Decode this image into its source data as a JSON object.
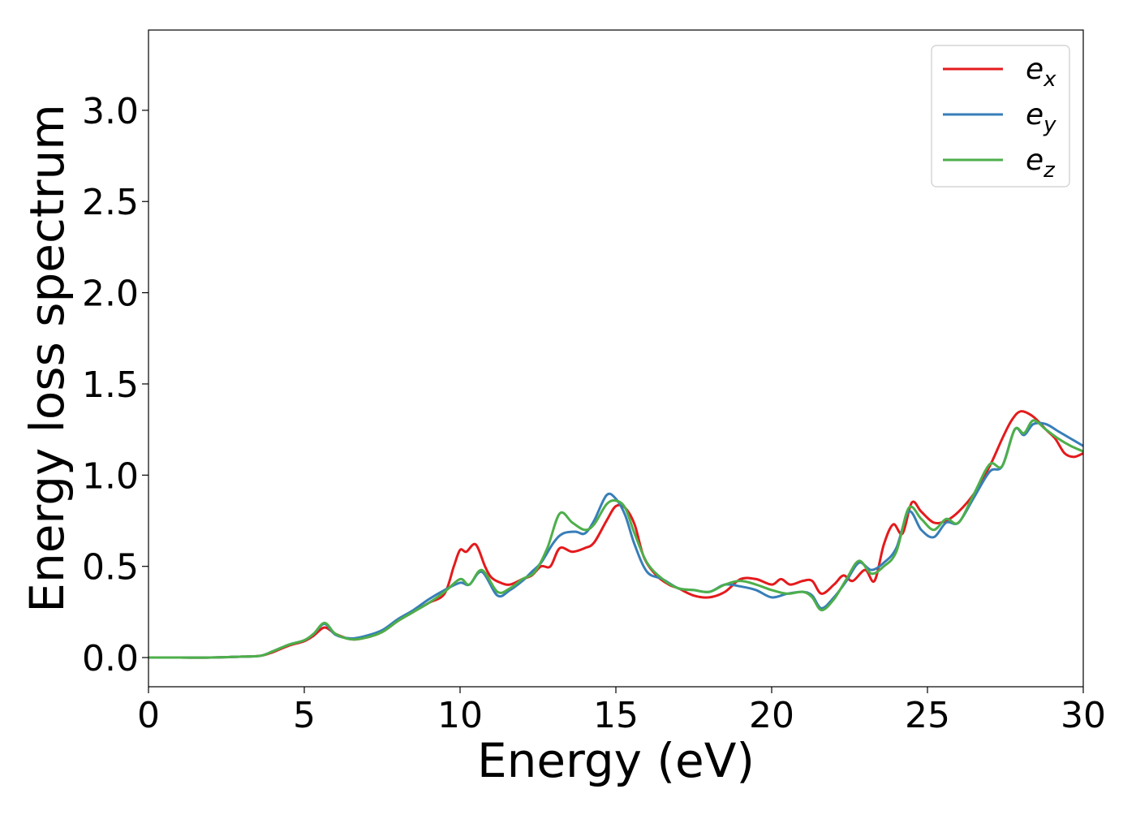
{
  "chart_data": {
    "type": "line",
    "title": "",
    "xlabel": "Energy (eV)",
    "ylabel": "Energy loss spectrum",
    "xlim": [
      0,
      30
    ],
    "ylim": [
      -0.16,
      3.44
    ],
    "xticks": [
      0,
      5,
      10,
      15,
      20,
      25,
      30
    ],
    "xtick_labels": [
      "0",
      "5",
      "10",
      "15",
      "20",
      "25",
      "30"
    ],
    "yticks": [
      0.0,
      0.5,
      1.0,
      1.5,
      2.0,
      2.5,
      3.0
    ],
    "ytick_labels": [
      "0.0",
      "0.5",
      "1.0",
      "1.5",
      "2.0",
      "2.5",
      "3.0"
    ],
    "grid": false,
    "legend_position": "top-right",
    "series": [
      {
        "name": "e_x",
        "label_base": "e",
        "label_sub": "x",
        "color": "#e41a1c",
        "points": [
          [
            0,
            0
          ],
          [
            1,
            0
          ],
          [
            2,
            0
          ],
          [
            3,
            0.005
          ],
          [
            3.6,
            0.01
          ],
          [
            4,
            0.03
          ],
          [
            4.5,
            0.065
          ],
          [
            5,
            0.09
          ],
          [
            5.3,
            0.12
          ],
          [
            5.65,
            0.165
          ],
          [
            6,
            0.13
          ],
          [
            6.5,
            0.1
          ],
          [
            7,
            0.11
          ],
          [
            7.5,
            0.14
          ],
          [
            8,
            0.2
          ],
          [
            8.5,
            0.25
          ],
          [
            9,
            0.3
          ],
          [
            9.5,
            0.35
          ],
          [
            9.8,
            0.5
          ],
          [
            10,
            0.59
          ],
          [
            10.2,
            0.58
          ],
          [
            10.5,
            0.62
          ],
          [
            10.8,
            0.5
          ],
          [
            11,
            0.44
          ],
          [
            11.3,
            0.41
          ],
          [
            11.6,
            0.4
          ],
          [
            12,
            0.43
          ],
          [
            12.3,
            0.45
          ],
          [
            12.6,
            0.5
          ],
          [
            12.9,
            0.5
          ],
          [
            13.2,
            0.6
          ],
          [
            13.6,
            0.58
          ],
          [
            14,
            0.6
          ],
          [
            14.3,
            0.63
          ],
          [
            14.7,
            0.75
          ],
          [
            15,
            0.83
          ],
          [
            15.3,
            0.82
          ],
          [
            15.6,
            0.73
          ],
          [
            15.9,
            0.55
          ],
          [
            16.3,
            0.45
          ],
          [
            16.7,
            0.4
          ],
          [
            17,
            0.38
          ],
          [
            17.5,
            0.34
          ],
          [
            18,
            0.33
          ],
          [
            18.5,
            0.36
          ],
          [
            19,
            0.43
          ],
          [
            19.5,
            0.43
          ],
          [
            20,
            0.4
          ],
          [
            20.3,
            0.43
          ],
          [
            20.6,
            0.4
          ],
          [
            21,
            0.42
          ],
          [
            21.3,
            0.42
          ],
          [
            21.6,
            0.35
          ],
          [
            22,
            0.4
          ],
          [
            22.3,
            0.45
          ],
          [
            22.6,
            0.42
          ],
          [
            23,
            0.48
          ],
          [
            23.3,
            0.42
          ],
          [
            23.6,
            0.62
          ],
          [
            23.9,
            0.73
          ],
          [
            24.2,
            0.68
          ],
          [
            24.5,
            0.85
          ],
          [
            24.8,
            0.8
          ],
          [
            25.2,
            0.74
          ],
          [
            25.6,
            0.75
          ],
          [
            26,
            0.8
          ],
          [
            26.5,
            0.9
          ],
          [
            27,
            1.05
          ],
          [
            27.4,
            1.2
          ],
          [
            27.7,
            1.3
          ],
          [
            28,
            1.35
          ],
          [
            28.4,
            1.32
          ],
          [
            28.8,
            1.25
          ],
          [
            29.1,
            1.2
          ],
          [
            29.4,
            1.12
          ],
          [
            29.7,
            1.1
          ],
          [
            30,
            1.12
          ]
        ]
      },
      {
        "name": "e_y",
        "label_base": "e",
        "label_sub": "y",
        "color": "#377eb8",
        "points": [
          [
            0,
            0
          ],
          [
            1,
            0
          ],
          [
            2,
            0
          ],
          [
            3,
            0.005
          ],
          [
            3.6,
            0.01
          ],
          [
            4,
            0.035
          ],
          [
            4.5,
            0.07
          ],
          [
            5,
            0.095
          ],
          [
            5.3,
            0.13
          ],
          [
            5.65,
            0.185
          ],
          [
            6,
            0.125
          ],
          [
            6.5,
            0.105
          ],
          [
            7,
            0.12
          ],
          [
            7.5,
            0.15
          ],
          [
            8,
            0.21
          ],
          [
            8.5,
            0.26
          ],
          [
            9,
            0.32
          ],
          [
            9.5,
            0.37
          ],
          [
            10,
            0.41
          ],
          [
            10.3,
            0.4
          ],
          [
            10.7,
            0.47
          ],
          [
            11.2,
            0.34
          ],
          [
            11.6,
            0.37
          ],
          [
            12,
            0.42
          ],
          [
            12.3,
            0.47
          ],
          [
            12.6,
            0.52
          ],
          [
            13,
            0.63
          ],
          [
            13.3,
            0.68
          ],
          [
            13.7,
            0.69
          ],
          [
            14,
            0.68
          ],
          [
            14.3,
            0.75
          ],
          [
            14.7,
            0.89
          ],
          [
            15,
            0.87
          ],
          [
            15.3,
            0.78
          ],
          [
            15.6,
            0.62
          ],
          [
            16,
            0.47
          ],
          [
            16.5,
            0.43
          ],
          [
            17,
            0.38
          ],
          [
            17.5,
            0.37
          ],
          [
            18,
            0.36
          ],
          [
            18.5,
            0.4
          ],
          [
            19,
            0.39
          ],
          [
            19.5,
            0.37
          ],
          [
            20,
            0.33
          ],
          [
            20.5,
            0.35
          ],
          [
            21,
            0.36
          ],
          [
            21.3,
            0.34
          ],
          [
            21.6,
            0.27
          ],
          [
            22,
            0.33
          ],
          [
            22.4,
            0.42
          ],
          [
            22.8,
            0.52
          ],
          [
            23.2,
            0.48
          ],
          [
            23.6,
            0.52
          ],
          [
            24,
            0.6
          ],
          [
            24.4,
            0.8
          ],
          [
            24.8,
            0.7
          ],
          [
            25.2,
            0.66
          ],
          [
            25.6,
            0.74
          ],
          [
            26,
            0.74
          ],
          [
            26.5,
            0.88
          ],
          [
            27,
            1.02
          ],
          [
            27.4,
            1.05
          ],
          [
            27.8,
            1.25
          ],
          [
            28.1,
            1.22
          ],
          [
            28.4,
            1.28
          ],
          [
            28.8,
            1.28
          ],
          [
            29.2,
            1.24
          ],
          [
            29.6,
            1.2
          ],
          [
            30,
            1.16
          ]
        ]
      },
      {
        "name": "e_z",
        "label_base": "e",
        "label_sub": "z",
        "color": "#4daf4a",
        "points": [
          [
            0,
            0
          ],
          [
            1,
            0
          ],
          [
            2,
            0
          ],
          [
            3,
            0.005
          ],
          [
            3.6,
            0.01
          ],
          [
            4,
            0.035
          ],
          [
            4.5,
            0.07
          ],
          [
            5,
            0.095
          ],
          [
            5.3,
            0.13
          ],
          [
            5.65,
            0.19
          ],
          [
            6,
            0.13
          ],
          [
            6.5,
            0.1
          ],
          [
            7,
            0.11
          ],
          [
            7.5,
            0.14
          ],
          [
            8,
            0.2
          ],
          [
            8.5,
            0.25
          ],
          [
            9,
            0.3
          ],
          [
            9.5,
            0.36
          ],
          [
            10,
            0.43
          ],
          [
            10.3,
            0.4
          ],
          [
            10.7,
            0.48
          ],
          [
            11.2,
            0.36
          ],
          [
            11.6,
            0.38
          ],
          [
            12,
            0.43
          ],
          [
            12.4,
            0.47
          ],
          [
            12.8,
            0.6
          ],
          [
            13.2,
            0.79
          ],
          [
            13.6,
            0.74
          ],
          [
            14,
            0.7
          ],
          [
            14.3,
            0.73
          ],
          [
            14.7,
            0.84
          ],
          [
            15,
            0.86
          ],
          [
            15.3,
            0.82
          ],
          [
            15.6,
            0.68
          ],
          [
            16,
            0.52
          ],
          [
            16.5,
            0.43
          ],
          [
            17,
            0.38
          ],
          [
            17.5,
            0.37
          ],
          [
            18,
            0.36
          ],
          [
            18.5,
            0.4
          ],
          [
            19,
            0.42
          ],
          [
            19.5,
            0.4
          ],
          [
            20,
            0.37
          ],
          [
            20.5,
            0.35
          ],
          [
            21,
            0.36
          ],
          [
            21.3,
            0.33
          ],
          [
            21.6,
            0.26
          ],
          [
            22,
            0.32
          ],
          [
            22.4,
            0.43
          ],
          [
            22.8,
            0.53
          ],
          [
            23.2,
            0.46
          ],
          [
            23.6,
            0.5
          ],
          [
            24,
            0.58
          ],
          [
            24.4,
            0.82
          ],
          [
            24.8,
            0.76
          ],
          [
            25.2,
            0.7
          ],
          [
            25.6,
            0.76
          ],
          [
            26,
            0.74
          ],
          [
            26.5,
            0.9
          ],
          [
            27,
            1.06
          ],
          [
            27.4,
            1.05
          ],
          [
            27.8,
            1.25
          ],
          [
            28.1,
            1.23
          ],
          [
            28.4,
            1.3
          ],
          [
            28.8,
            1.25
          ],
          [
            29.2,
            1.2
          ],
          [
            29.6,
            1.16
          ],
          [
            30,
            1.13
          ]
        ]
      }
    ]
  }
}
